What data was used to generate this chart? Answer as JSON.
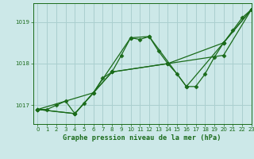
{
  "title": "Graphe pression niveau de la mer (hPa)",
  "bg_color": "#cce8e8",
  "grid_color": "#aacfcf",
  "line_color": "#1a6b1a",
  "xlim": [
    -0.5,
    23
  ],
  "ylim": [
    1016.55,
    1019.45
  ],
  "yticks": [
    1017,
    1018,
    1019
  ],
  "xticks": [
    0,
    1,
    2,
    3,
    4,
    5,
    6,
    7,
    8,
    9,
    10,
    11,
    12,
    13,
    14,
    15,
    16,
    17,
    18,
    19,
    20,
    21,
    22,
    23
  ],
  "series": [
    {
      "x": [
        0,
        1,
        2,
        3,
        4,
        5,
        6,
        7,
        8,
        9,
        10,
        11,
        12,
        13,
        14,
        15,
        16,
        17,
        18,
        19,
        20,
        21,
        22,
        23
      ],
      "y": [
        1016.9,
        1016.9,
        1017.0,
        1017.1,
        1016.8,
        1017.05,
        1017.3,
        1017.65,
        1017.8,
        1018.2,
        1018.62,
        1018.58,
        1018.65,
        1018.3,
        1018.0,
        1017.75,
        1017.45,
        1017.45,
        1017.75,
        1018.15,
        1018.5,
        1018.8,
        1019.1,
        1019.3
      ],
      "marker": "D",
      "markersize": 2.5,
      "linewidth": 0.9
    },
    {
      "x": [
        0,
        6,
        10,
        12,
        16,
        20,
        23
      ],
      "y": [
        1016.9,
        1017.3,
        1018.62,
        1018.65,
        1017.45,
        1018.5,
        1019.3
      ],
      "marker": "D",
      "markersize": 2.5,
      "linewidth": 0.9
    },
    {
      "x": [
        0,
        4,
        8,
        14,
        20,
        23
      ],
      "y": [
        1016.9,
        1016.8,
        1017.8,
        1018.0,
        1018.5,
        1019.3
      ],
      "marker": "D",
      "markersize": 2.5,
      "linewidth": 0.9
    },
    {
      "x": [
        0,
        4,
        8,
        14,
        20,
        23
      ],
      "y": [
        1016.9,
        1016.8,
        1017.8,
        1018.0,
        1018.2,
        1019.3
      ],
      "marker": "D",
      "markersize": 2.5,
      "linewidth": 0.9
    }
  ]
}
